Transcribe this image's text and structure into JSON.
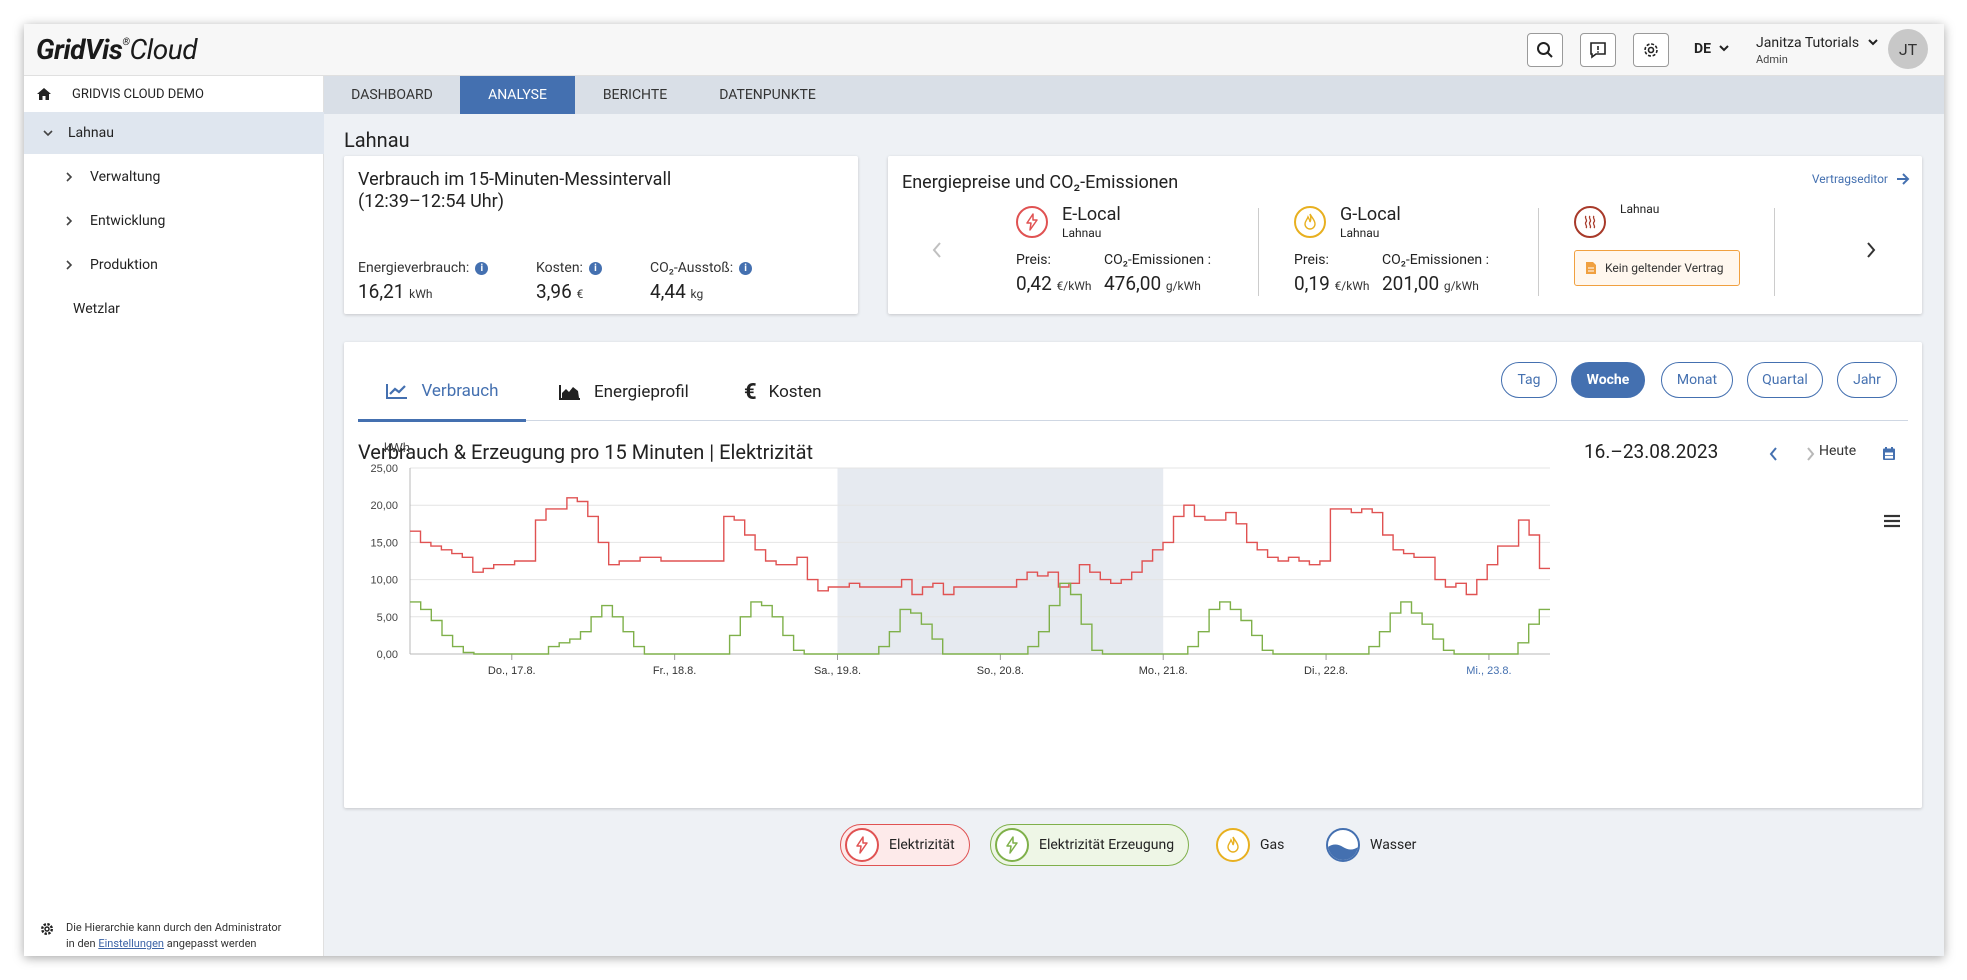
{
  "header": {
    "logo_main": "GridVis",
    "logo_reg": "®",
    "logo_cloud": "Cloud",
    "icons": [
      "search-icon",
      "feedback-icon",
      "gear-icon"
    ],
    "language": "DE",
    "user_name": "Janitza Tutorials",
    "user_role": "Admin",
    "avatar_initials": "JT"
  },
  "sidebar": {
    "root": "GRIDVIS CLOUD DEMO",
    "items": [
      {
        "label": "Lahnau"
      },
      {
        "label": "Verwaltung"
      },
      {
        "label": "Entwicklung"
      },
      {
        "label": "Produktion"
      },
      {
        "label": "Wetzlar"
      }
    ],
    "note_line1": "Die Hierarchie kann durch den Administrator",
    "note_pre": "in den ",
    "note_link": "Einstellungen",
    "note_post": " angepasst werden"
  },
  "nav_tabs": [
    "DASHBOARD",
    "ANALYSE",
    "BERICHTE",
    "DATENPUNKTE"
  ],
  "page_title": "Lahnau",
  "consumption_card": {
    "title_line1": "Verbrauch im 15-Minuten-Messintervall",
    "title_line2": "(12:39–12:54 Uhr)",
    "metrics": [
      {
        "label": "Energieverbrauch:",
        "value": "16,21",
        "unit": "kWh"
      },
      {
        "label": "Kosten:",
        "value": "3,96",
        "unit": "€"
      },
      {
        "label": "CO₂-Ausstoß:",
        "value": "4,44",
        "unit": "kg"
      }
    ]
  },
  "energy_card": {
    "title": "Energiepreise und CO₂-Emissionen",
    "link": "Vertragseditor",
    "providers": [
      {
        "name": "E-Local",
        "site": "Lahnau",
        "price_label": "Preis:",
        "price": "0,42",
        "price_unit": "€/kWh",
        "co2_label": "CO₂-Emissionen :",
        "co2": "476,00",
        "co2_unit": "g/kWh",
        "color": "#e05252"
      },
      {
        "name": "G-Local",
        "site": "Lahnau",
        "price_label": "Preis:",
        "price": "0,19",
        "price_unit": "€/kWh",
        "co2_label": "CO₂-Emissionen :",
        "co2": "201,00",
        "co2_unit": "g/kWh",
        "color": "#e8b020"
      }
    ],
    "heat": {
      "site": "Lahnau",
      "status": "Kein geltender Vertrag",
      "color": "#a83a2a"
    }
  },
  "chart_tabs": [
    "Verbrauch",
    "Energieprofil",
    "Kosten"
  ],
  "periods": [
    "Tag",
    "Woche",
    "Monat",
    "Quartal",
    "Jahr"
  ],
  "chart_header": {
    "title": "Verbrauch & Erzeugung pro 15 Minuten | Elektrizität",
    "date_range": "16.–23.08.2023",
    "today": "Heute"
  },
  "chart_data": {
    "type": "line",
    "ylabel": "kWh",
    "ylim": [
      0,
      25
    ],
    "yticks": [
      "0,00",
      "5,00",
      "10,00",
      "15,00",
      "20,00",
      "25,00"
    ],
    "xticks": [
      "Do., 17.8.",
      "Fr., 18.8.",
      "Sa., 19.8.",
      "So., 20.8.",
      "Mo., 21.8.",
      "Di., 22.8.",
      "Mi., 23.8."
    ],
    "weekend_shaded": [
      "Sa., 19.8.",
      "So., 20.8."
    ],
    "grid": true,
    "x_hours_start": 0,
    "x_hours_end": 168,
    "series": [
      {
        "name": "Elektrizität",
        "color": "#e05252",
        "values": [
          16.5,
          15,
          14.5,
          14,
          13.5,
          13,
          11,
          11.5,
          12,
          12,
          12.5,
          12.5,
          18,
          19.5,
          19.5,
          21,
          20.5,
          18.5,
          15,
          12,
          12.5,
          12.5,
          13,
          13,
          12.5,
          12.5,
          12.5,
          12.5,
          12.5,
          12.5,
          18.5,
          18,
          16,
          14,
          12.5,
          12,
          12,
          13,
          10,
          8.5,
          9,
          9,
          9.5,
          9,
          9,
          9,
          9,
          10,
          8,
          9,
          9.5,
          8,
          9,
          9,
          9,
          9,
          9,
          9,
          10,
          11,
          10.5,
          11,
          9,
          9.5,
          12,
          11,
          10,
          9.5,
          10,
          11,
          12.5,
          14,
          15,
          18.5,
          20,
          18.5,
          18,
          18,
          19,
          17.5,
          15,
          14,
          13,
          12.5,
          13,
          12.5,
          12,
          12.5,
          19.5,
          19.5,
          19,
          19.5,
          19,
          16,
          14,
          13.5,
          13,
          13,
          10,
          9,
          9.5,
          8,
          10,
          12,
          14.5,
          14.5,
          18,
          16,
          11.5
        ]
      },
      {
        "name": "Elektrizität Erzeugung",
        "color": "#7fb04a",
        "values": [
          7,
          6,
          4.5,
          2.5,
          1,
          0.2,
          0,
          0,
          0,
          0,
          0,
          0,
          0,
          1,
          1.5,
          2,
          3,
          5,
          6.5,
          5,
          3,
          1,
          0,
          0,
          0,
          0,
          0,
          0,
          0,
          0,
          2.5,
          5,
          7,
          6.5,
          5,
          2.5,
          0.5,
          0,
          0,
          0,
          0,
          0,
          0,
          0,
          1,
          3,
          6,
          5.5,
          4,
          2,
          0,
          0,
          0,
          0,
          0,
          0,
          0,
          0,
          1,
          3,
          6.5,
          9.5,
          8,
          4,
          0.5,
          0,
          0,
          0,
          0,
          0,
          0,
          0,
          0,
          1,
          3,
          6,
          7,
          6,
          4.5,
          2.5,
          0.5,
          0,
          0,
          0,
          0,
          0,
          0,
          0,
          0,
          0,
          1,
          3,
          5.5,
          7,
          5.5,
          4,
          2,
          0.5,
          0,
          0,
          0,
          0,
          0,
          0,
          1.5,
          4,
          6
        ]
      }
    ]
  },
  "legend": [
    {
      "label": "Elektrizität",
      "color": "#e05252",
      "active": true
    },
    {
      "label": "Elektrizität Erzeugung",
      "color": "#7fb04a",
      "active": true
    },
    {
      "label": "Gas",
      "color": "#e8b020",
      "active": false
    },
    {
      "label": "Wasser",
      "color": "#4470b0",
      "active": false
    }
  ]
}
